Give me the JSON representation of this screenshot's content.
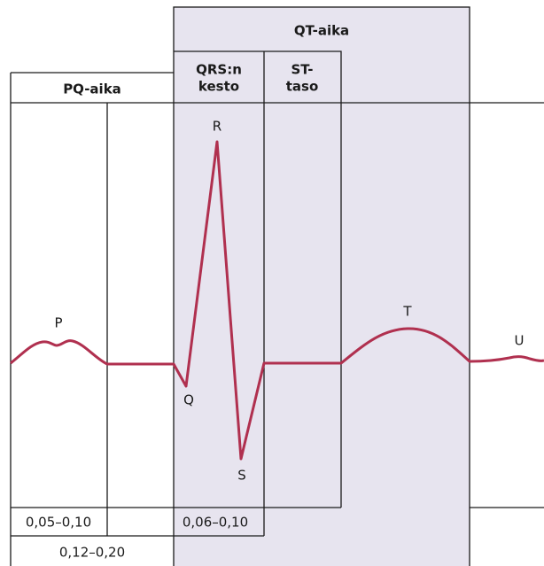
{
  "headers": {
    "qt": "QT-aika",
    "pq": "PQ-aika",
    "qrs": [
      "QRS:n",
      "kesto"
    ],
    "st": [
      "ST-",
      "taso"
    ]
  },
  "waves": {
    "p": "P",
    "q": "Q",
    "r": "R",
    "s": "S",
    "t": "T",
    "u": "U"
  },
  "intervals": {
    "p_duration": "0,05–0,10",
    "qrs_duration": "0,06–0,10",
    "pq_duration": "0,12–0,20"
  }
}
